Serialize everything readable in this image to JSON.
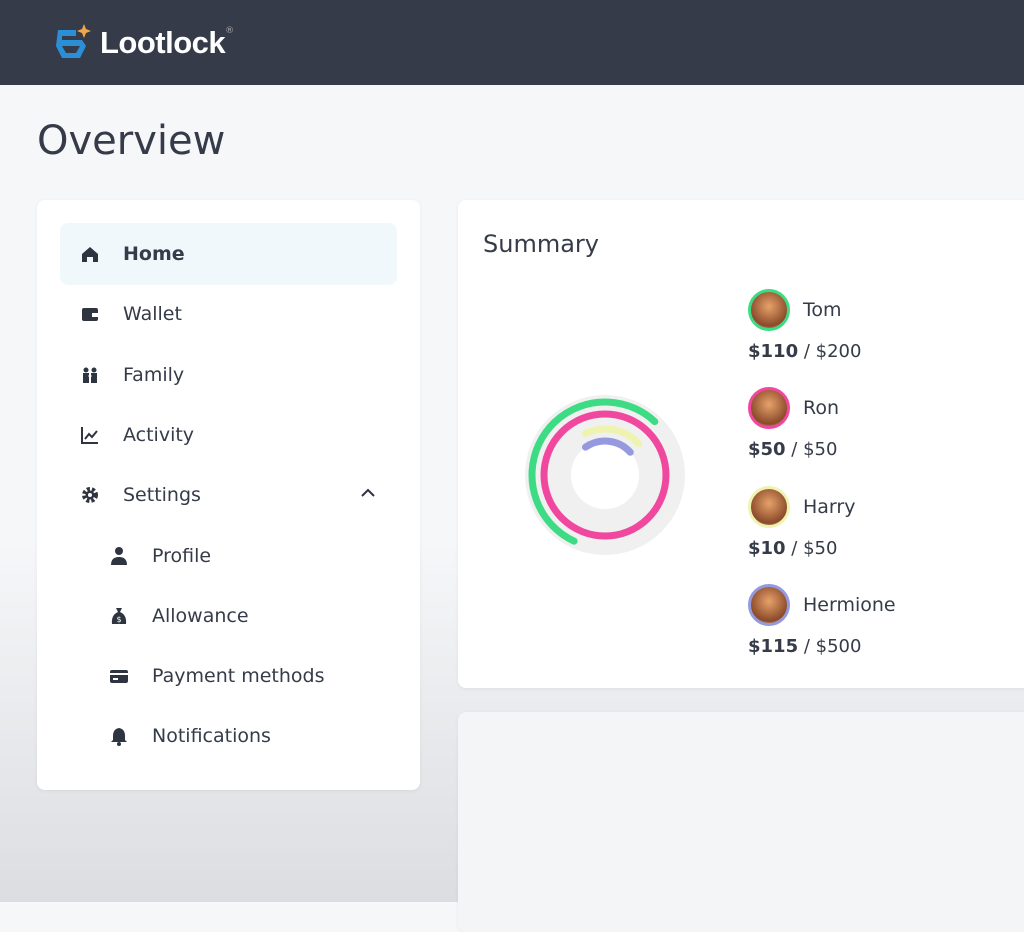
{
  "header": {
    "brand": "Lootlock",
    "reg_mark": "®"
  },
  "page": {
    "title": "Overview"
  },
  "sidebar": {
    "items": [
      {
        "label": "Home",
        "icon": "home-icon",
        "active": true
      },
      {
        "label": "Wallet",
        "icon": "wallet-icon"
      },
      {
        "label": "Family",
        "icon": "family-icon"
      },
      {
        "label": "Activity",
        "icon": "chart-line-icon"
      },
      {
        "label": "Settings",
        "icon": "gear-icon",
        "expanded": true
      },
      {
        "label": "Profile",
        "icon": "person-icon",
        "sub": true
      },
      {
        "label": "Allowance",
        "icon": "money-bag-icon",
        "sub": true
      },
      {
        "label": "Payment methods",
        "icon": "credit-card-icon",
        "sub": true
      },
      {
        "label": "Notifications",
        "icon": "bell-icon",
        "sub": true
      }
    ]
  },
  "summary": {
    "title": "Summary",
    "people": [
      {
        "name": "Tom",
        "spent": "$110",
        "limit": "$200",
        "value": 110,
        "max": 200,
        "color": "#3ddc84"
      },
      {
        "name": "Ron",
        "spent": "$50",
        "limit": "$50",
        "value": 50,
        "max": 50,
        "color": "#f0479f"
      },
      {
        "name": "Harry",
        "spent": "$10",
        "limit": "$50",
        "value": 10,
        "max": 50,
        "color": "#eef3b0"
      },
      {
        "name": "Hermione",
        "spent": "$115",
        "limit": "$500",
        "value": 115,
        "max": 500,
        "color": "#9599dd"
      }
    ]
  }
}
